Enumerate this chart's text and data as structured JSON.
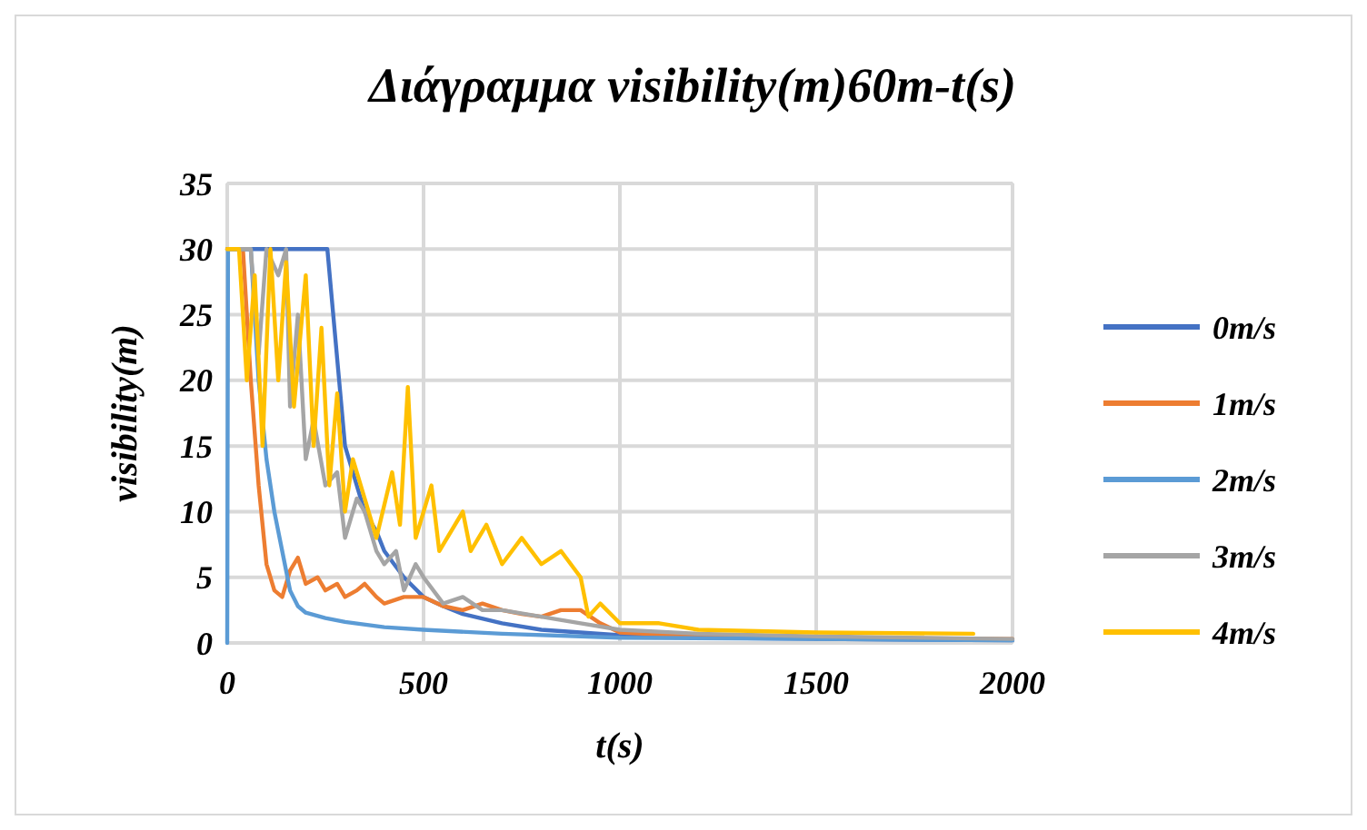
{
  "chart_data": {
    "type": "line",
    "title": "Διάγραμμα visibility(m)60m-t(s)",
    "xlabel": "t(s)",
    "ylabel": "visibility(m)",
    "xlim": [
      0,
      2000
    ],
    "xticks": [
      0,
      500,
      1000,
      1500,
      2000
    ],
    "ylim": [
      0,
      35
    ],
    "yticks": [
      0,
      5,
      10,
      15,
      20,
      25,
      30,
      35
    ],
    "grid": true,
    "legend": "right",
    "line_style": "solid",
    "series": [
      {
        "name": "0m/s",
        "color": "#4472c4",
        "x": [
          0,
          100,
          200,
          255,
          270,
          285,
          300,
          320,
          350,
          380,
          400,
          450,
          500,
          550,
          600,
          700,
          800,
          900,
          1000,
          1200,
          1500,
          2000
        ],
        "values": [
          30,
          30,
          30,
          30,
          25,
          20,
          15,
          13,
          10,
          8.5,
          7,
          5,
          3.5,
          2.8,
          2.2,
          1.5,
          1,
          0.8,
          0.6,
          0.4,
          0.3,
          0.2
        ]
      },
      {
        "name": "1m/s",
        "color": "#ed7d31",
        "x": [
          0,
          40,
          60,
          80,
          100,
          120,
          140,
          160,
          180,
          200,
          230,
          250,
          280,
          300,
          330,
          350,
          380,
          400,
          450,
          500,
          550,
          600,
          650,
          700,
          750,
          800,
          850,
          900,
          950,
          1000,
          1200,
          1500,
          2000
        ],
        "values": [
          30,
          30,
          20,
          12,
          6,
          4,
          3.5,
          5.5,
          6.5,
          4.5,
          5,
          4,
          4.5,
          3.5,
          4,
          4.5,
          3.5,
          3,
          3.5,
          3.5,
          2.8,
          2.5,
          3,
          2.5,
          2.2,
          2,
          2.5,
          2.5,
          1.5,
          0.8,
          0.5,
          0.4,
          0.3
        ]
      },
      {
        "name": "2m/s",
        "color": "#5b9bd5",
        "x": [
          0,
          2,
          60,
          80,
          100,
          120,
          140,
          160,
          180,
          200,
          250,
          300,
          400,
          500,
          700,
          1000,
          1500,
          2000
        ],
        "values": [
          0,
          30,
          30,
          20,
          14,
          10,
          7,
          4,
          2.8,
          2.3,
          1.9,
          1.6,
          1.2,
          1,
          0.7,
          0.4,
          0.3,
          0.2
        ]
      },
      {
        "name": "3m/s",
        "color": "#a5a5a5",
        "x": [
          0,
          60,
          80,
          100,
          130,
          150,
          160,
          180,
          200,
          220,
          250,
          280,
          300,
          330,
          350,
          380,
          400,
          430,
          450,
          480,
          500,
          550,
          600,
          650,
          700,
          800,
          900,
          1000,
          1200,
          1500,
          2000
        ],
        "values": [
          30,
          30,
          22,
          30,
          28,
          30,
          18,
          25,
          14,
          17,
          12,
          13,
          8,
          11,
          10,
          7,
          6,
          7,
          4,
          6,
          5,
          3,
          3.5,
          2.5,
          2.5,
          2,
          1.5,
          1,
          0.7,
          0.5,
          0.3
        ]
      },
      {
        "name": "4m/s",
        "color": "#ffc000",
        "x": [
          0,
          30,
          50,
          70,
          90,
          110,
          130,
          150,
          170,
          200,
          220,
          240,
          260,
          280,
          300,
          320,
          350,
          380,
          420,
          440,
          460,
          480,
          520,
          540,
          600,
          620,
          660,
          700,
          750,
          800,
          850,
          900,
          920,
          950,
          1000,
          1100,
          1200,
          1500,
          1900
        ],
        "values": [
          30,
          30,
          20,
          28,
          15,
          30,
          20,
          29,
          18,
          28,
          15,
          24,
          12,
          19,
          10,
          14,
          11,
          8,
          13,
          9,
          19.5,
          8,
          12,
          7,
          10,
          7,
          9,
          6,
          8,
          6,
          7,
          5,
          2,
          3,
          1.5,
          1.5,
          1,
          0.8,
          0.7
        ]
      }
    ]
  }
}
